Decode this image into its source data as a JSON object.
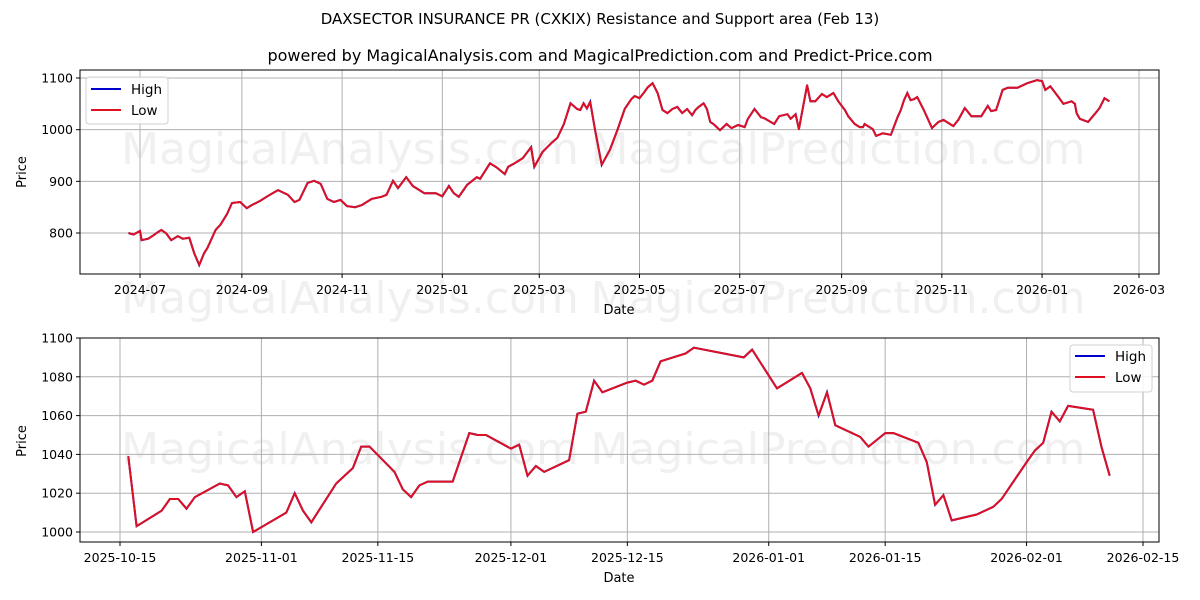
{
  "title": "DAXSECTOR INSURANCE PR (CXKIX) Resistance and Support area (Feb 13)",
  "subtitle": "powered by MagicalAnalysis.com and MagicalPrediction.com and Predict-Price.com",
  "watermarks": [
    "MagicalAnalysis.com",
    "MagicalPrediction.com"
  ],
  "colors": {
    "high": "#0000cc",
    "low": "#dd1122",
    "grid": "#b0b0b0"
  },
  "chart_data": [
    {
      "type": "line",
      "title": "",
      "xlabel": "Date",
      "ylabel": "Price",
      "ylim": [
        720,
        1115
      ],
      "yticks": [
        800,
        900,
        1000,
        1100
      ],
      "xticks": [
        "2024-07",
        "2024-09",
        "2024-11",
        "2025-01",
        "2025-03",
        "2025-05",
        "2025-07",
        "2025-09",
        "2025-11",
        "2026-01",
        "2026-03"
      ],
      "grid": true,
      "legend": {
        "position": "upper left",
        "entries": [
          "High",
          "Low"
        ]
      },
      "x": [
        "2024-06-24",
        "2024-06-27",
        "2024-07-01",
        "2024-07-02",
        "2024-07-06",
        "2024-07-09",
        "2024-07-12",
        "2024-07-14",
        "2024-07-17",
        "2024-07-20",
        "2024-07-24",
        "2024-07-27",
        "2024-07-31",
        "2024-08-01",
        "2024-08-03",
        "2024-08-06",
        "2024-08-09",
        "2024-08-11",
        "2024-08-16",
        "2024-08-19",
        "2024-08-23",
        "2024-08-26",
        "2024-08-31",
        "2024-09-04",
        "2024-09-07",
        "2024-09-12",
        "2024-09-17",
        "2024-09-23",
        "2024-09-29",
        "2024-10-03",
        "2024-10-06",
        "2024-10-11",
        "2024-10-15",
        "2024-10-19",
        "2024-10-23",
        "2024-10-27",
        "2024-10-31",
        "2024-11-04",
        "2024-11-09",
        "2024-11-13",
        "2024-11-19",
        "2024-11-25",
        "2024-11-28",
        "2024-12-02",
        "2024-12-05",
        "2024-12-10",
        "2024-12-14",
        "2024-12-21",
        "2024-12-28",
        "2025-01-01",
        "2025-01-05",
        "2025-01-08",
        "2025-01-11",
        "2025-01-16",
        "2025-01-22",
        "2025-01-24",
        "2025-01-30",
        "2025-02-03",
        "2025-02-08",
        "2025-02-10",
        "2025-02-14",
        "2025-02-19",
        "2025-02-24",
        "2025-02-26",
        "2025-03-03",
        "2025-03-09",
        "2025-03-12",
        "2025-03-16",
        "2025-03-20",
        "2025-03-24",
        "2025-03-26",
        "2025-03-28",
        "2025-03-30",
        "2025-04-01",
        "2025-04-04",
        "2025-04-08",
        "2025-04-13",
        "2025-04-18",
        "2025-04-22",
        "2025-04-26",
        "2025-04-28",
        "2025-05-01",
        "2025-05-04",
        "2025-05-06",
        "2025-05-09",
        "2025-05-12",
        "2025-05-15",
        "2025-05-18",
        "2025-05-21",
        "2025-05-24",
        "2025-05-27",
        "2025-05-30",
        "2025-06-02",
        "2025-06-04",
        "2025-06-06",
        "2025-06-09",
        "2025-06-11",
        "2025-06-13",
        "2025-06-15",
        "2025-06-19",
        "2025-06-23",
        "2025-06-26",
        "2025-06-30",
        "2025-07-04",
        "2025-07-06",
        "2025-07-10",
        "2025-07-14",
        "2025-07-16",
        "2025-07-22",
        "2025-07-25",
        "2025-07-30",
        "2025-08-01",
        "2025-08-04",
        "2025-08-06",
        "2025-08-11",
        "2025-08-13",
        "2025-08-16",
        "2025-08-20",
        "2025-08-23",
        "2025-08-27",
        "2025-08-30",
        "2025-09-03",
        "2025-09-05",
        "2025-09-09",
        "2025-09-12",
        "2025-09-14",
        "2025-09-15",
        "2025-09-20",
        "2025-09-22",
        "2025-09-26",
        "2025-10-01",
        "2025-10-05",
        "2025-10-07",
        "2025-10-09",
        "2025-10-11",
        "2025-10-13",
        "2025-10-15",
        "2025-10-17",
        "2025-10-21",
        "2025-10-26",
        "2025-10-30",
        "2025-11-02",
        "2025-11-08",
        "2025-11-11",
        "2025-11-15",
        "2025-11-19",
        "2025-11-25",
        "2025-11-29",
        "2025-12-01",
        "2025-12-04",
        "2025-12-08",
        "2025-12-11",
        "2025-12-17",
        "2025-12-23",
        "2025-12-29",
        "2026-01-01",
        "2026-01-03",
        "2026-01-06",
        "2026-01-11",
        "2026-01-14",
        "2026-01-19",
        "2026-01-21",
        "2026-01-22",
        "2026-01-24",
        "2026-01-29",
        "2026-02-02",
        "2026-02-05",
        "2026-02-08",
        "2026-02-11"
      ],
      "series": [
        {
          "name": "High",
          "color": "#0000cc"
        },
        {
          "name": "Low",
          "color": "#dd1122",
          "values": [
            800,
            797,
            804,
            786,
            789,
            795,
            802,
            806,
            799,
            786,
            794,
            789,
            791,
            781,
            761,
            738,
            761,
            771,
            806,
            816,
            837,
            858,
            860,
            848,
            854,
            862,
            872,
            883,
            874,
            860,
            864,
            897,
            901,
            895,
            866,
            860,
            864,
            852,
            850,
            854,
            866,
            870,
            874,
            901,
            887,
            908,
            891,
            877,
            877,
            871,
            891,
            877,
            870,
            893,
            908,
            905,
            935,
            927,
            914,
            928,
            935,
            945,
            966,
            928,
            957,
            976,
            984,
            1011,
            1051,
            1040,
            1038,
            1051,
            1041,
            1054,
            999,
            932,
            961,
            1003,
            1040,
            1059,
            1065,
            1061,
            1073,
            1082,
            1090,
            1071,
            1038,
            1032,
            1040,
            1044,
            1032,
            1040,
            1028,
            1038,
            1044,
            1051,
            1040,
            1015,
            1011,
            999,
            1011,
            1003,
            1009,
            1005,
            1021,
            1040,
            1024,
            1022,
            1011,
            1026,
            1030,
            1021,
            1030,
            1001,
            1086,
            1055,
            1055,
            1069,
            1063,
            1071,
            1055,
            1038,
            1026,
            1011,
            1005,
            1005,
            1011,
            1001,
            988,
            993,
            990,
            1024,
            1038,
            1057,
            1071,
            1057,
            1059,
            1063,
            1038,
            1003,
            1015,
            1019,
            1007,
            1019,
            1042,
            1026,
            1026,
            1046,
            1036,
            1038,
            1077,
            1081,
            1081,
            1090,
            1096,
            1094,
            1077,
            1084,
            1063,
            1050,
            1055,
            1050,
            1032,
            1021,
            1015,
            1030,
            1042,
            1061,
            1055,
            1028
          ]
        }
      ]
    },
    {
      "type": "line",
      "title": "",
      "xlabel": "Date",
      "ylabel": "Price",
      "ylim": [
        995,
        1100
      ],
      "yticks": [
        1000,
        1020,
        1040,
        1060,
        1080,
        1100
      ],
      "xticks": [
        "2025-10-15",
        "2025-11-01",
        "2025-11-15",
        "2025-12-01",
        "2025-12-15",
        "2026-01-01",
        "2026-01-15",
        "2026-02-01",
        "2026-02-15"
      ],
      "grid": true,
      "legend": {
        "position": "upper right",
        "entries": [
          "High",
          "Low"
        ]
      },
      "x": [
        "2025-10-16",
        "2025-10-17",
        "2025-10-20",
        "2025-10-21",
        "2025-10-22",
        "2025-10-23",
        "2025-10-24",
        "2025-10-27",
        "2025-10-28",
        "2025-10-29",
        "2025-10-30",
        "2025-10-31",
        "2025-11-04",
        "2025-11-05",
        "2025-11-06",
        "2025-11-07",
        "2025-11-10",
        "2025-11-12",
        "2025-11-13",
        "2025-11-14",
        "2025-11-17",
        "2025-11-18",
        "2025-11-19",
        "2025-11-20",
        "2025-11-21",
        "2025-11-24",
        "2025-11-26",
        "2025-11-27",
        "2025-11-28",
        "2025-12-01",
        "2025-12-02",
        "2025-12-03",
        "2025-12-04",
        "2025-12-05",
        "2025-12-08",
        "2025-12-09",
        "2025-12-10",
        "2025-12-11",
        "2025-12-12",
        "2025-12-15",
        "2025-12-16",
        "2025-12-17",
        "2025-12-18",
        "2025-12-19",
        "2025-12-22",
        "2025-12-23",
        "2025-12-29",
        "2025-12-30",
        "2026-01-02",
        "2026-01-05",
        "2026-01-06",
        "2026-01-07",
        "2026-01-08",
        "2026-01-09",
        "2026-01-12",
        "2026-01-13",
        "2026-01-15",
        "2026-01-16",
        "2026-01-19",
        "2026-01-20",
        "2026-01-21",
        "2026-01-22",
        "2026-01-23",
        "2026-01-26",
        "2026-01-28",
        "2026-01-29",
        "2026-02-01",
        "2026-02-02",
        "2026-02-03",
        "2026-02-04",
        "2026-02-05",
        "2026-02-06",
        "2026-02-09",
        "2026-02-10",
        "2026-02-11"
      ],
      "series": [
        {
          "name": "High",
          "color": "#0000cc"
        },
        {
          "name": "Low",
          "color": "#dd1122",
          "values": [
            1039,
            1003,
            1011,
            1017,
            1017,
            1012,
            1018,
            1025,
            1024,
            1018,
            1021,
            1000,
            1010,
            1020,
            1011,
            1005,
            1025,
            1033,
            1044,
            1044,
            1031,
            1022,
            1018,
            1024,
            1026,
            1026,
            1051,
            1050,
            1050,
            1043,
            1045,
            1029,
            1034,
            1031,
            1037,
            1061,
            1062,
            1078,
            1072,
            1077,
            1078,
            1076,
            1078,
            1088,
            1092,
            1095,
            1090,
            1094,
            1074,
            1082,
            1074,
            1060,
            1072,
            1055,
            1049,
            1044,
            1051,
            1051,
            1046,
            1036,
            1014,
            1019,
            1006,
            1009,
            1013,
            1017,
            1036,
            1042,
            1046,
            1062,
            1057,
            1065,
            1063,
            1044,
            1029
          ]
        }
      ]
    }
  ]
}
